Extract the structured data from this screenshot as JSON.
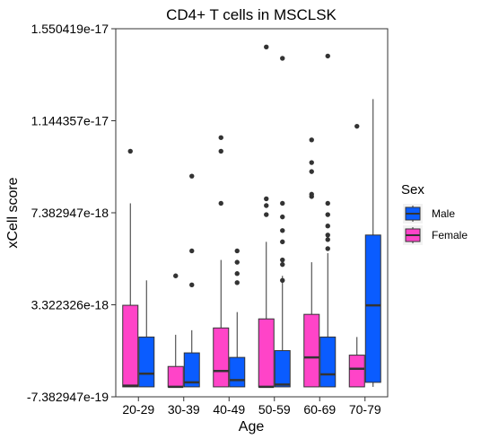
{
  "chart_data": {
    "type": "box",
    "title": "CD4+ T cells in MSCLSK",
    "xlabel": "Age",
    "ylabel": "xCell score",
    "ylim": [
      -7.382947e-19,
      1.550419e-17
    ],
    "y_tick_values": [
      -7.382947e-19,
      3.322326e-18,
      7.382947e-18,
      1.144357e-17,
      1.550419e-17
    ],
    "y_tick_labels": [
      "-7.382947e-19",
      "3.322326e-18",
      "7.382947e-18",
      "1.144357e-17",
      "1.550419e-17"
    ],
    "categories": [
      "20-29",
      "30-39",
      "40-49",
      "50-59",
      "60-69",
      "70-79"
    ],
    "grid": false,
    "legend": {
      "title": "Sex",
      "placement": "right",
      "entries": [
        {
          "label": "Male",
          "color": "#0a5cff"
        },
        {
          "label": "Female",
          "color": "#ff44c8"
        }
      ]
    },
    "series": [
      {
        "name": "Female",
        "color": "#ff44c8",
        "boxes": [
          {
            "min": -3e-19,
            "q1": -3e-19,
            "median": -2.5e-19,
            "q3": 3.3e-18,
            "max": 7.8e-18,
            "outliers": [
              1.01e-17
            ]
          },
          {
            "min": -3e-19,
            "q1": -3e-19,
            "median": -3e-19,
            "q3": 6e-19,
            "max": 2e-18,
            "outliers": [
              4.6e-18
            ]
          },
          {
            "min": -3e-19,
            "q1": -3e-19,
            "median": 4e-19,
            "q3": 2.3e-18,
            "max": 5.3e-18,
            "outliers": [
              7.8e-18,
              1.01e-17,
              1.07e-17
            ]
          },
          {
            "min": -3e-19,
            "q1": -3e-19,
            "median": -3e-19,
            "q3": 2.7e-18,
            "max": 6.1e-18,
            "outliers": [
              7.3e-18,
              7.7e-18,
              8e-18,
              1.47e-17
            ]
          },
          {
            "min": -3e-19,
            "q1": -3e-19,
            "median": 1e-18,
            "q3": 2.9e-18,
            "max": 5.2e-18,
            "outliers": [
              8.1e-18,
              8.2e-18,
              9.2e-18,
              9.6e-18,
              1.06e-17
            ]
          },
          {
            "min": -3e-19,
            "q1": -3e-19,
            "median": 5e-19,
            "q3": 1.1e-18,
            "max": 1.9e-18,
            "outliers": [
              1.12e-17
            ]
          }
        ]
      },
      {
        "name": "Male",
        "color": "#0a5cff",
        "boxes": [
          {
            "min": -3e-19,
            "q1": -3e-19,
            "median": 2.8e-19,
            "q3": 1.9e-18,
            "max": 4.4e-18,
            "outliers": []
          },
          {
            "min": -3e-19,
            "q1": -3e-19,
            "median": -1e-19,
            "q3": 1.2e-18,
            "max": 2.2e-18,
            "outliers": [
              4.2e-18,
              5.7e-18,
              9e-18
            ]
          },
          {
            "min": -3e-19,
            "q1": -3e-19,
            "median": 0.0,
            "q3": 1e-18,
            "max": 3e-18,
            "outliers": [
              4.3e-18,
              4.7e-18,
              5.2e-18,
              5.7e-18
            ]
          },
          {
            "min": -3e-19,
            "q1": -3e-19,
            "median": -2e-19,
            "q3": 1.3e-18,
            "max": 4.6e-18,
            "outliers": [
              4.4e-18,
              5.1e-18,
              5.3e-18,
              6.1e-18,
              6.6e-18,
              7.2e-18,
              7.8e-18,
              1.42e-17
            ]
          },
          {
            "min": -3e-19,
            "q1": -3e-19,
            "median": 2.5e-19,
            "q3": 1.9e-18,
            "max": 5.6e-18,
            "outliers": [
              5.8e-18,
              6.2e-18,
              6.4e-18,
              6.8e-18,
              7.3e-18,
              7.8e-18,
              1.43e-17
            ]
          },
          {
            "min": -3e-19,
            "q1": -1e-19,
            "median": 3.3e-18,
            "q3": 6.4e-18,
            "max": 1.24e-17,
            "outliers": []
          }
        ]
      }
    ]
  }
}
